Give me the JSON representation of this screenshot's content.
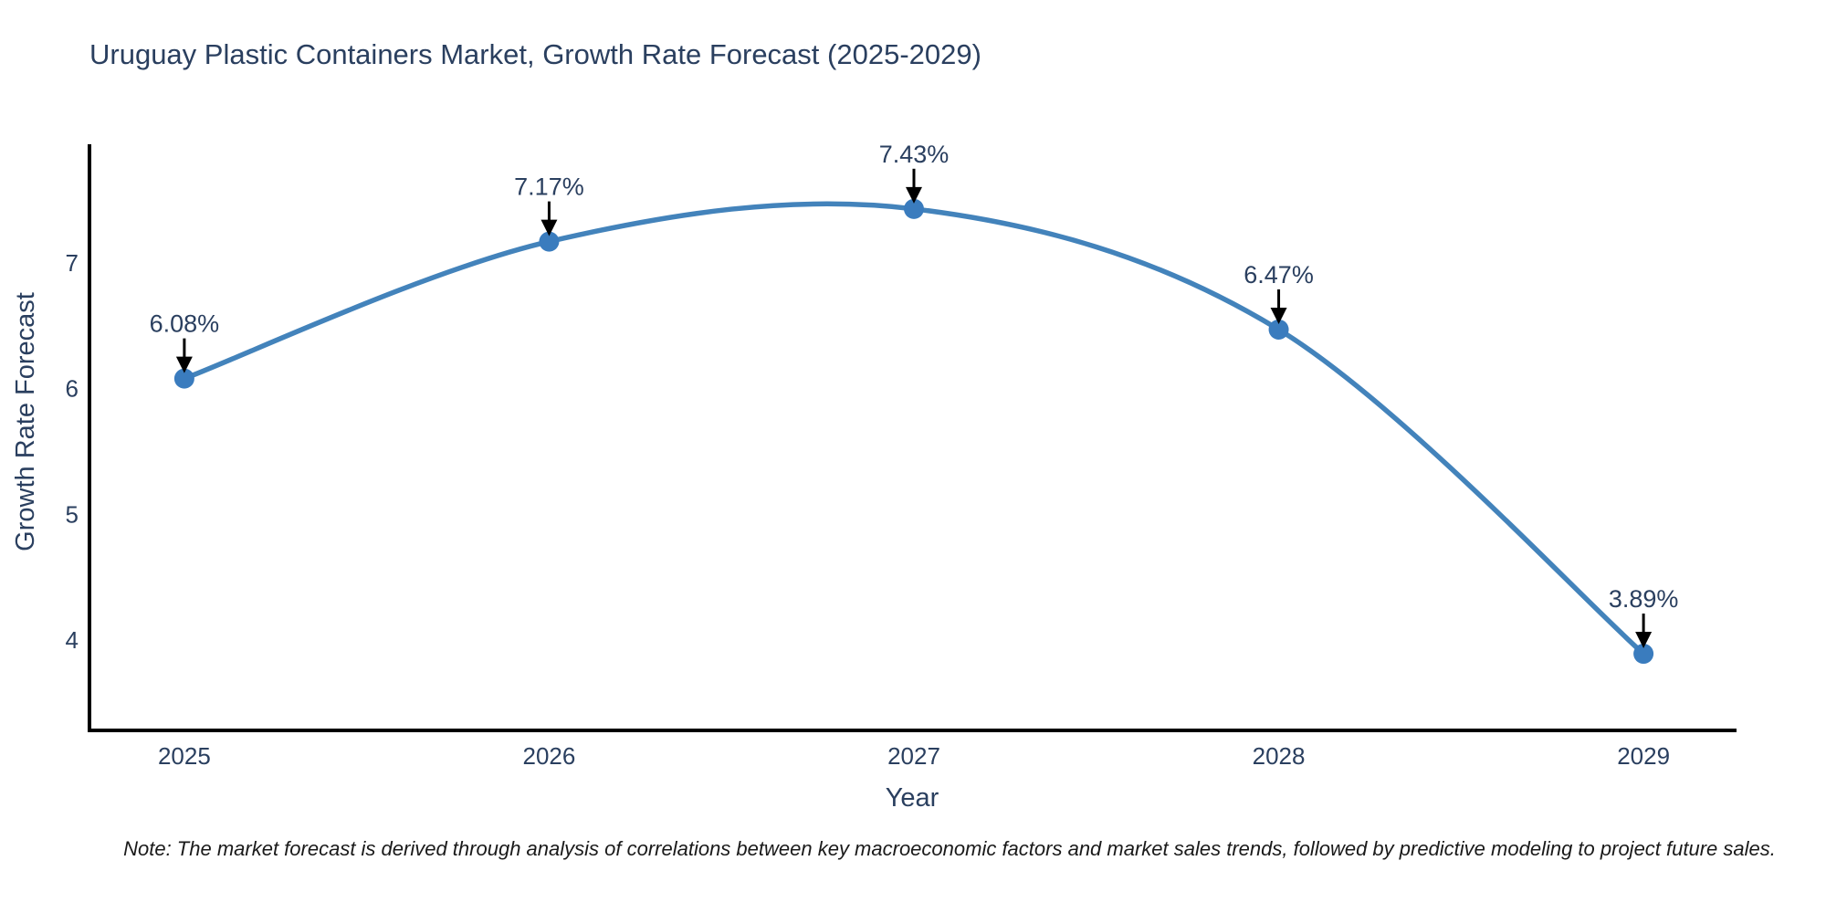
{
  "header": {
    "title": "Uruguay Plastic Containers Market, Growth Rate Forecast (2025-2029)"
  },
  "footer": {
    "note": "Note: The market forecast is derived through analysis of correlations between key macroeconomic factors and market sales trends, followed by predictive modeling to project future sales."
  },
  "chart_data": {
    "type": "line",
    "title": "Uruguay Plastic Containers Market, Growth Rate Forecast (2025-2029)",
    "xlabel": "Year",
    "ylabel": "Growth Rate Forecast",
    "categories": [
      2025,
      2026,
      2027,
      2028,
      2029
    ],
    "series": [
      {
        "name": "Growth Rate Forecast",
        "values": [
          6.08,
          7.17,
          7.43,
          6.47,
          3.89
        ]
      }
    ],
    "point_labels": [
      "6.08%",
      "7.17%",
      "7.43%",
      "6.47%",
      "3.89%"
    ],
    "line_shape": "spline",
    "markers": true,
    "annotation_arrows": true,
    "xticks": [
      "2025",
      "2026",
      "2027",
      "2028",
      "2029"
    ],
    "yticks": [
      4,
      5,
      6,
      7
    ],
    "xlim": [
      2024.74,
      2029.25
    ],
    "ylim": [
      3.28,
      7.93
    ],
    "grid": false,
    "legend_position": "none",
    "colors": {
      "line": "#4383bb",
      "marker": "#3a7cbe",
      "axis": "#000000",
      "tick_text": "#2a3f5f",
      "annotation_text": "#2a3f5f",
      "arrow": "#000000",
      "note_text": "#1a1a1a",
      "background": "#ffffff"
    }
  }
}
